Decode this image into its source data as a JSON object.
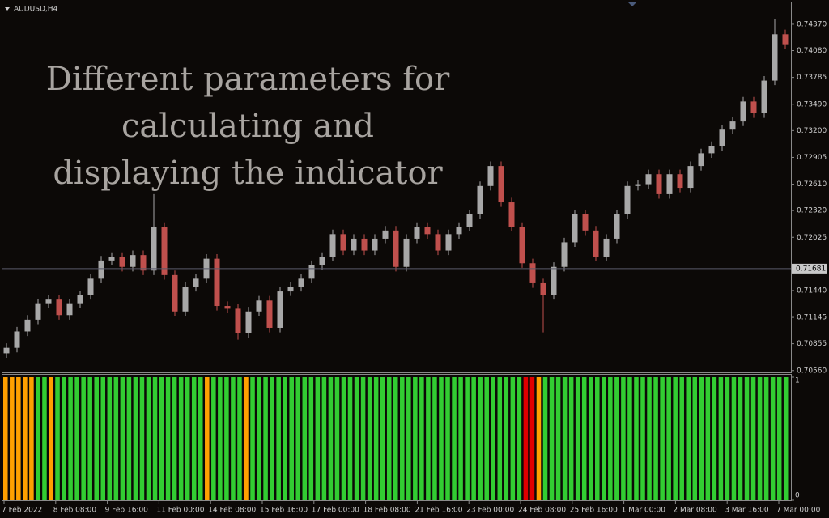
{
  "chart_data": [
    {
      "type": "candlestick",
      "title": "AUDUSD,H4",
      "annotation": [
        "Different parameters for",
        "calculating and",
        "displaying the indicator"
      ],
      "up_color": "#a8a8a8",
      "down_color": "#c0504d",
      "current_price": {
        "value": 0.71681,
        "label": "0.71681"
      },
      "ylim": [
        0.7054,
        0.7461
      ],
      "yticks": [
        {
          "value": 0.7437,
          "label": "0.74370"
        },
        {
          "value": 0.7408,
          "label": "0.74080"
        },
        {
          "value": 0.73785,
          "label": "0.73785"
        },
        {
          "value": 0.7349,
          "label": "0.73490"
        },
        {
          "value": 0.732,
          "label": "0.73200"
        },
        {
          "value": 0.72905,
          "label": "0.72905"
        },
        {
          "value": 0.7261,
          "label": "0.72610"
        },
        {
          "value": 0.7232,
          "label": "0.72320"
        },
        {
          "value": 0.72025,
          "label": "0.72025"
        },
        {
          "value": 0.7144,
          "label": "0.71440"
        },
        {
          "value": 0.71145,
          "label": "0.71145"
        },
        {
          "value": 0.70855,
          "label": "0.70855"
        },
        {
          "value": 0.7056,
          "label": "0.70560"
        }
      ],
      "xlabels": [
        "7 Feb 2022",
        "8 Feb 08:00",
        "9 Feb 16:00",
        "11 Feb 00:00",
        "14 Feb 08:00",
        "15 Feb 16:00",
        "17 Feb 00:00",
        "18 Feb 08:00",
        "21 Feb 16:00",
        "23 Feb 00:00",
        "24 Feb 08:00",
        "25 Feb 16:00",
        "1 Mar 00:00",
        "2 Mar 08:00",
        "3 Mar 16:00",
        "7 Mar 00:00"
      ],
      "candles": [
        [
          0.7075,
          0.7086,
          0.707,
          0.7081
        ],
        [
          0.7081,
          0.7104,
          0.7076,
          0.7099
        ],
        [
          0.7099,
          0.7117,
          0.7094,
          0.7112
        ],
        [
          0.7112,
          0.7135,
          0.7107,
          0.713
        ],
        [
          0.713,
          0.7139,
          0.7125,
          0.7134
        ],
        [
          0.7134,
          0.7139,
          0.7112,
          0.7117
        ],
        [
          0.7117,
          0.7135,
          0.7112,
          0.713
        ],
        [
          0.713,
          0.7144,
          0.7125,
          0.7139
        ],
        [
          0.7139,
          0.7162,
          0.7134,
          0.7157
        ],
        [
          0.7157,
          0.7182,
          0.7152,
          0.7177
        ],
        [
          0.7177,
          0.7186,
          0.7172,
          0.7181
        ],
        [
          0.7181,
          0.7186,
          0.7165,
          0.717
        ],
        [
          0.717,
          0.7188,
          0.7165,
          0.7183
        ],
        [
          0.7183,
          0.7188,
          0.7161,
          0.7166
        ],
        [
          0.7166,
          0.725,
          0.7161,
          0.7214
        ],
        [
          0.7214,
          0.7219,
          0.7156,
          0.7161
        ],
        [
          0.7161,
          0.7166,
          0.7116,
          0.7121
        ],
        [
          0.7121,
          0.7153,
          0.7116,
          0.7148
        ],
        [
          0.7148,
          0.7162,
          0.7143,
          0.7157
        ],
        [
          0.7157,
          0.7184,
          0.7152,
          0.7179
        ],
        [
          0.7179,
          0.7184,
          0.7122,
          0.7127
        ],
        [
          0.7127,
          0.7132,
          0.7119,
          0.7124
        ],
        [
          0.7124,
          0.7129,
          0.709,
          0.7097
        ],
        [
          0.7097,
          0.7126,
          0.7092,
          0.7121
        ],
        [
          0.7121,
          0.7138,
          0.7116,
          0.7133
        ],
        [
          0.7133,
          0.7138,
          0.7098,
          0.7103
        ],
        [
          0.7103,
          0.7148,
          0.7098,
          0.7143
        ],
        [
          0.7143,
          0.7153,
          0.7138,
          0.7148
        ],
        [
          0.7148,
          0.7162,
          0.7143,
          0.7157
        ],
        [
          0.7157,
          0.7177,
          0.7152,
          0.7172
        ],
        [
          0.7172,
          0.7186,
          0.7167,
          0.7181
        ],
        [
          0.7181,
          0.7211,
          0.7176,
          0.7206
        ],
        [
          0.7206,
          0.7211,
          0.7183,
          0.7188
        ],
        [
          0.7188,
          0.7206,
          0.7183,
          0.7201
        ],
        [
          0.7201,
          0.7206,
          0.7183,
          0.7188
        ],
        [
          0.7188,
          0.7206,
          0.7183,
          0.7201
        ],
        [
          0.7201,
          0.7215,
          0.7196,
          0.721
        ],
        [
          0.721,
          0.7215,
          0.7165,
          0.717
        ],
        [
          0.717,
          0.7206,
          0.7165,
          0.7201
        ],
        [
          0.7201,
          0.7219,
          0.7196,
          0.7214
        ],
        [
          0.7214,
          0.7219,
          0.7201,
          0.7206
        ],
        [
          0.7206,
          0.7211,
          0.7183,
          0.7188
        ],
        [
          0.7188,
          0.7211,
          0.7183,
          0.7206
        ],
        [
          0.7206,
          0.7219,
          0.7201,
          0.7214
        ],
        [
          0.7214,
          0.7233,
          0.7209,
          0.7228
        ],
        [
          0.7228,
          0.7264,
          0.7223,
          0.7259
        ],
        [
          0.7259,
          0.7286,
          0.7254,
          0.7281
        ],
        [
          0.7281,
          0.7286,
          0.7236,
          0.7241
        ],
        [
          0.7241,
          0.7246,
          0.7209,
          0.7214
        ],
        [
          0.7214,
          0.7219,
          0.7169,
          0.7174
        ],
        [
          0.7174,
          0.7179,
          0.7147,
          0.7152
        ],
        [
          0.7152,
          0.7157,
          0.7098,
          0.7139
        ],
        [
          0.7139,
          0.7175,
          0.7134,
          0.717
        ],
        [
          0.717,
          0.7202,
          0.7165,
          0.7197
        ],
        [
          0.7197,
          0.7233,
          0.7192,
          0.7228
        ],
        [
          0.7228,
          0.7233,
          0.7205,
          0.721
        ],
        [
          0.721,
          0.7215,
          0.7176,
          0.7181
        ],
        [
          0.7181,
          0.7206,
          0.7176,
          0.7201
        ],
        [
          0.7201,
          0.7233,
          0.7196,
          0.7228
        ],
        [
          0.7228,
          0.7264,
          0.7223,
          0.7259
        ],
        [
          0.7259,
          0.7266,
          0.7254,
          0.7261
        ],
        [
          0.7261,
          0.7277,
          0.7256,
          0.7272
        ],
        [
          0.7272,
          0.7277,
          0.7245,
          0.725
        ],
        [
          0.725,
          0.7277,
          0.7245,
          0.7272
        ],
        [
          0.7272,
          0.7277,
          0.7252,
          0.7257
        ],
        [
          0.7257,
          0.7286,
          0.7252,
          0.7281
        ],
        [
          0.7281,
          0.73,
          0.7276,
          0.7295
        ],
        [
          0.7295,
          0.7308,
          0.729,
          0.7303
        ],
        [
          0.7303,
          0.7326,
          0.7298,
          0.7321
        ],
        [
          0.7321,
          0.7335,
          0.7316,
          0.733
        ],
        [
          0.733,
          0.7357,
          0.7325,
          0.7352
        ],
        [
          0.7352,
          0.7357,
          0.7334,
          0.7339
        ],
        [
          0.7339,
          0.738,
          0.7334,
          0.7375
        ],
        [
          0.7375,
          0.7443,
          0.737,
          0.7426
        ],
        [
          0.7426,
          0.7431,
          0.741,
          0.7415
        ]
      ]
    },
    {
      "type": "bar",
      "ylim": [
        0,
        1
      ],
      "yticks": [
        1,
        0
      ],
      "values": [
        1,
        1,
        1,
        1,
        1,
        1,
        1,
        1,
        1,
        1,
        1,
        1,
        1,
        1,
        1,
        1,
        1,
        1,
        1,
        1,
        1,
        1,
        1,
        1,
        1,
        1,
        1,
        1,
        1,
        1,
        1,
        1,
        1,
        1,
        1,
        1,
        1,
        1,
        1,
        1,
        1,
        1,
        1,
        1,
        1,
        1,
        1,
        1,
        1,
        1,
        1,
        1,
        1,
        1,
        1,
        1,
        1,
        1,
        1,
        1,
        1,
        1,
        1,
        1,
        1,
        1,
        1,
        1,
        1,
        1,
        1,
        1,
        1,
        1,
        1,
        1,
        1,
        1,
        1,
        1,
        1,
        1,
        1,
        1,
        1,
        1,
        1,
        1,
        1,
        1,
        1,
        1,
        1,
        1,
        1,
        1,
        1,
        1,
        1,
        1,
        1,
        1,
        1,
        1,
        1,
        1,
        1,
        1,
        1,
        1,
        1,
        1,
        1,
        1,
        1,
        1,
        1,
        1,
        1,
        1,
        1
      ],
      "colors": [
        "#ffa000",
        "#ffa000",
        "#ffa000",
        "#ffa000",
        "#ffa000",
        "#32cd32",
        "#32cd32",
        "#ffa000",
        "#32cd32",
        "#32cd32",
        "#32cd32",
        "#32cd32",
        "#32cd32",
        "#32cd32",
        "#32cd32",
        "#32cd32",
        "#32cd32",
        "#32cd32",
        "#32cd32",
        "#32cd32",
        "#32cd32",
        "#32cd32",
        "#32cd32",
        "#32cd32",
        "#32cd32",
        "#32cd32",
        "#32cd32",
        "#32cd32",
        "#32cd32",
        "#32cd32",
        "#32cd32",
        "#ffa000",
        "#32cd32",
        "#32cd32",
        "#32cd32",
        "#32cd32",
        "#32cd32",
        "#ffa000",
        "#32cd32",
        "#32cd32",
        "#32cd32",
        "#32cd32",
        "#32cd32",
        "#32cd32",
        "#32cd32",
        "#32cd32",
        "#32cd32",
        "#32cd32",
        "#32cd32",
        "#32cd32",
        "#32cd32",
        "#32cd32",
        "#32cd32",
        "#32cd32",
        "#32cd32",
        "#32cd32",
        "#32cd32",
        "#32cd32",
        "#32cd32",
        "#32cd32",
        "#32cd32",
        "#32cd32",
        "#32cd32",
        "#32cd32",
        "#32cd32",
        "#32cd32",
        "#32cd32",
        "#32cd32",
        "#32cd32",
        "#32cd32",
        "#32cd32",
        "#32cd32",
        "#32cd32",
        "#32cd32",
        "#32cd32",
        "#32cd32",
        "#32cd32",
        "#32cd32",
        "#32cd32",
        "#32cd32",
        "#e00000",
        "#e00000",
        "#ffa000",
        "#32cd32",
        "#32cd32",
        "#32cd32",
        "#32cd32",
        "#32cd32",
        "#32cd32",
        "#32cd32",
        "#32cd32",
        "#32cd32",
        "#32cd32",
        "#32cd32",
        "#32cd32",
        "#32cd32",
        "#32cd32",
        "#32cd32",
        "#32cd32",
        "#32cd32",
        "#32cd32",
        "#32cd32",
        "#32cd32",
        "#32cd32",
        "#32cd32",
        "#32cd32",
        "#32cd32",
        "#32cd32",
        "#32cd32",
        "#32cd32",
        "#32cd32",
        "#32cd32",
        "#32cd32",
        "#32cd32",
        "#32cd32",
        "#32cd32",
        "#32cd32",
        "#32cd32",
        "#32cd32",
        "#32cd32",
        "#32cd32"
      ]
    }
  ]
}
